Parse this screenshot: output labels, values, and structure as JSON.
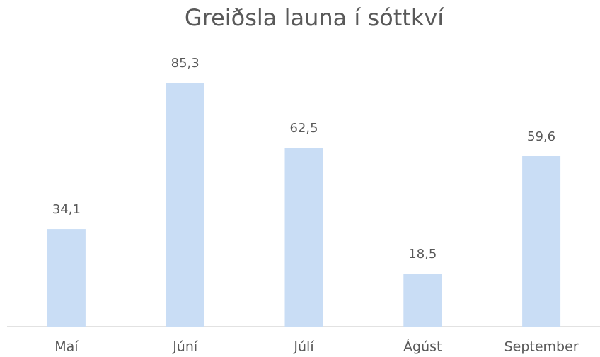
{
  "chart_data": {
    "type": "bar",
    "title": "Greiðsla launa í sóttkví",
    "categories": [
      "Maí",
      "Júní",
      "Júlí",
      "Ágúst",
      "September"
    ],
    "values": [
      34.1,
      85.3,
      62.5,
      18.5,
      59.6
    ],
    "value_labels": [
      "34,1",
      "85,3",
      "62,5",
      "18,5",
      "59,6"
    ],
    "color": "#c9ddf5"
  }
}
